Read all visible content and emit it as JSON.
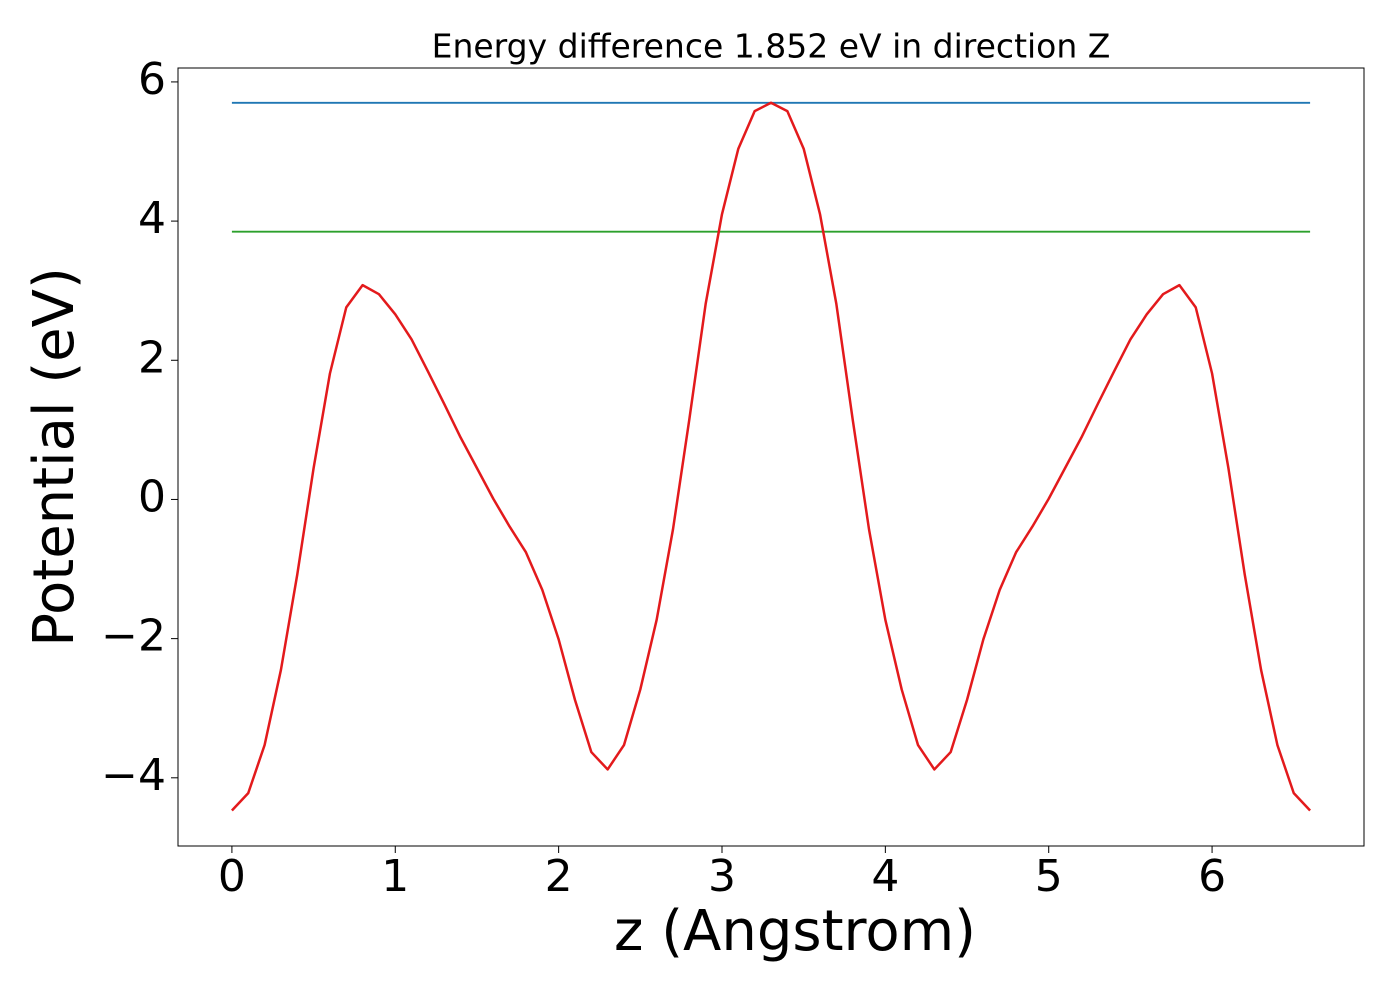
{
  "chart_data": {
    "type": "line",
    "title": "Energy difference 1.852 eV in direction Z",
    "xlabel": "z (Angstrom)",
    "ylabel": "Potential (eV)",
    "xlim": [
      -0.33,
      6.93
    ],
    "ylim": [
      -4.98,
      6.2
    ],
    "xticks": [
      0,
      1,
      2,
      3,
      4,
      5,
      6
    ],
    "yticks": [
      {
        "value": -4,
        "label": "−4"
      },
      {
        "value": -2,
        "label": "−2"
      },
      0,
      2,
      4,
      6
    ],
    "grid": false,
    "series": [
      {
        "color": "#1f77b4",
        "x": [
          0,
          6.6
        ],
        "values": [
          5.7,
          5.7
        ]
      },
      {
        "color": "#2ca02c",
        "x": [
          0,
          6.6
        ],
        "values": [
          3.848,
          3.848
        ]
      },
      {
        "color": "#e31a1c",
        "x": [
          0,
          0.1,
          0.2,
          0.3,
          0.4,
          0.5,
          0.6,
          0.7,
          0.8,
          0.9,
          1.0,
          1.1,
          1.2,
          1.3,
          1.4,
          1.5,
          1.6,
          1.7,
          1.8,
          1.9,
          2.0,
          2.1,
          2.2,
          2.3,
          2.4,
          2.5,
          2.6,
          2.7,
          2.8,
          2.9,
          3.0,
          3.1,
          3.2,
          3.3,
          3.4,
          3.5,
          3.6,
          3.7,
          3.8,
          3.9,
          4.0,
          4.1,
          4.2,
          4.3,
          4.4,
          4.5,
          4.6,
          4.7,
          4.8,
          4.9,
          5.0,
          5.1,
          5.2,
          5.3,
          5.4,
          5.5,
          5.6,
          5.7,
          5.8,
          5.9,
          6.0,
          6.1,
          6.2,
          6.3,
          6.4,
          6.5,
          6.6
        ],
        "values": [
          -4.47,
          -4.22,
          -3.53,
          -2.45,
          -1.08,
          0.45,
          1.81,
          2.76,
          3.08,
          2.95,
          2.66,
          2.3,
          1.84,
          1.37,
          0.89,
          0.45,
          0.01,
          -0.39,
          -0.76,
          -1.3,
          -2.01,
          -2.88,
          -3.63,
          -3.88,
          -3.53,
          -2.73,
          -1.73,
          -0.43,
          1.15,
          2.81,
          4.1,
          5.04,
          5.58,
          5.7,
          5.58,
          5.04,
          4.1,
          2.81,
          1.15,
          -0.43,
          -1.73,
          -2.73,
          -3.53,
          -3.88,
          -3.63,
          -2.88,
          -2.01,
          -1.3,
          -0.76,
          -0.39,
          0.01,
          0.45,
          0.89,
          1.37,
          1.84,
          2.3,
          2.66,
          2.95,
          3.08,
          2.76,
          1.81,
          0.45,
          -1.08,
          -2.45,
          -3.53,
          -4.22,
          -4.47
        ]
      }
    ]
  }
}
